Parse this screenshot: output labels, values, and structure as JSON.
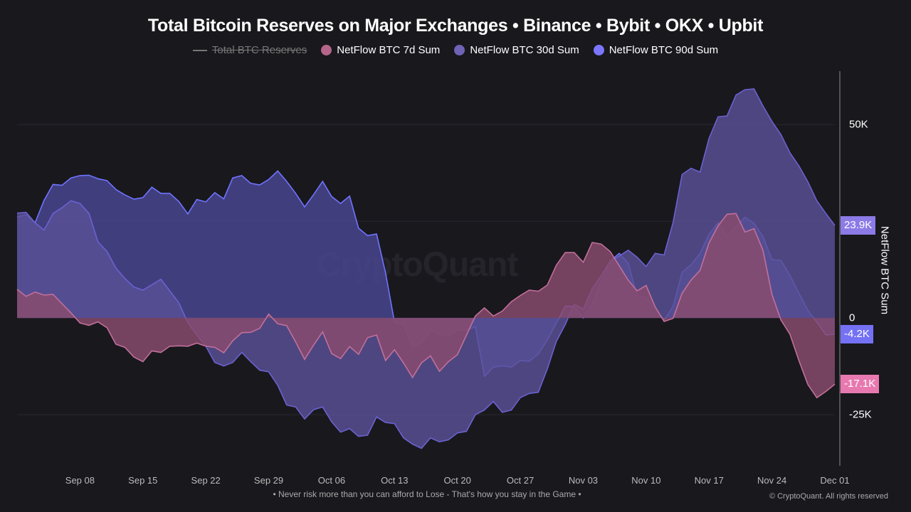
{
  "title": "Total Bitcoin Reserves on Major Exchanges • Binance • Bybit • OKX • Upbit",
  "legend": [
    {
      "label": "Total BTC Reserves",
      "color": "#777777",
      "hidden": true
    },
    {
      "label": "NetFlow BTC 7d Sum",
      "color": "#b5658a"
    },
    {
      "label": "NetFlow BTC 30d Sum",
      "color": "#6f63b5"
    },
    {
      "label": "NetFlow BTC 90d Sum",
      "color": "#7b76ff"
    }
  ],
  "watermark": "CryptoQuant",
  "footer": "• Never risk more than you can afford to Lose - That's how you stay in the Game •",
  "copyright": "© CryptoQuant. All rights reserved",
  "chart_data": {
    "type": "area",
    "title": "Total Bitcoin Reserves on Major Exchanges • Binance • Bybit • OKX • Upbit",
    "ylabel": "NetFlow BTC Sum",
    "y_unit": "K BTC",
    "ylim": [
      -38.2,
      63.8
    ],
    "y_ticks": [
      {
        "value": 50,
        "label": "50K"
      },
      {
        "value": 25,
        "label": ""
      },
      {
        "value": 0,
        "label": "0"
      },
      {
        "value": -25,
        "label": "-25K"
      }
    ],
    "grid": true,
    "legend_position": "top",
    "x_ticks": [
      "Sep 08",
      "Sep 15",
      "Sep 22",
      "Sep 29",
      "Oct 06",
      "Oct 13",
      "Oct 20",
      "Oct 27",
      "Nov 03",
      "Nov 10",
      "Nov 17",
      "Nov 24",
      "Dec 01"
    ],
    "x": [
      "Sep 01",
      "Sep 02",
      "Sep 03",
      "Sep 04",
      "Sep 05",
      "Sep 06",
      "Sep 07",
      "Sep 08",
      "Sep 09",
      "Sep 10",
      "Sep 11",
      "Sep 12",
      "Sep 13",
      "Sep 14",
      "Sep 15",
      "Sep 16",
      "Sep 17",
      "Sep 18",
      "Sep 19",
      "Sep 20",
      "Sep 21",
      "Sep 22",
      "Sep 23",
      "Sep 24",
      "Sep 25",
      "Sep 26",
      "Sep 27",
      "Sep 28",
      "Sep 29",
      "Sep 30",
      "Oct 01",
      "Oct 02",
      "Oct 03",
      "Oct 04",
      "Oct 05",
      "Oct 06",
      "Oct 07",
      "Oct 08",
      "Oct 09",
      "Oct 10",
      "Oct 11",
      "Oct 12",
      "Oct 13",
      "Oct 14",
      "Oct 15",
      "Oct 16",
      "Oct 17",
      "Oct 18",
      "Oct 19",
      "Oct 20",
      "Oct 21",
      "Oct 22",
      "Oct 23",
      "Oct 24",
      "Oct 25",
      "Oct 26",
      "Oct 27",
      "Oct 28",
      "Oct 29",
      "Oct 30",
      "Oct 31",
      "Nov 01",
      "Nov 02",
      "Nov 03",
      "Nov 04",
      "Nov 05",
      "Nov 06",
      "Nov 07",
      "Nov 08",
      "Nov 09",
      "Nov 10",
      "Nov 11",
      "Nov 12",
      "Nov 13",
      "Nov 14",
      "Nov 15",
      "Nov 16",
      "Nov 17",
      "Nov 18",
      "Nov 19",
      "Nov 20",
      "Nov 21",
      "Nov 22",
      "Nov 23",
      "Nov 24",
      "Nov 25",
      "Nov 26",
      "Nov 27",
      "Nov 28",
      "Nov 29",
      "Nov 30",
      "Dec 01"
    ],
    "series": [
      {
        "name": "NetFlow BTC 90d Sum",
        "line": "#6f74ff",
        "fill": "#4b4794",
        "badge": "#7471f5",
        "last_label": "-4.2K",
        "values": [
          26.1,
          26.7,
          24.6,
          30.4,
          34.5,
          34.3,
          36.2,
          36.8,
          36.9,
          36.0,
          35.5,
          33.2,
          31.8,
          30.7,
          31.1,
          33.8,
          32.2,
          32.2,
          30.1,
          26.9,
          30.6,
          30.0,
          32.4,
          30.8,
          36.2,
          36.8,
          34.8,
          34.4,
          35.8,
          38.0,
          35.3,
          32.2,
          28.7,
          31.9,
          35.3,
          31.4,
          29.6,
          31.5,
          23.2,
          21.3,
          21.7,
          11.7,
          -1.1,
          -1.7,
          -7.3,
          -6.4,
          -3.3,
          -4.2,
          -4.6,
          -3.1,
          -3.1,
          -2.3,
          -15.1,
          -12.7,
          -12.4,
          -12.7,
          -11.0,
          -11.2,
          -9.3,
          -5.7,
          -1.4,
          3.1,
          3.0,
          0.0,
          3.6,
          9.2,
          14.7,
          16.7,
          14.2,
          5.6,
          5.4,
          2.3,
          -0.5,
          3.0,
          11.8,
          13.8,
          16.7,
          21.6,
          24.6,
          21.1,
          23.6,
          26.0,
          24.5,
          21.0,
          15.1,
          14.9,
          11.0,
          6.4,
          2.0,
          -1.1,
          -4.4,
          -4.2
        ]
      },
      {
        "name": "NetFlow BTC 30d Sum",
        "line": "#6a62d0",
        "fill": "#5a5196",
        "badge": "#8c7ae6",
        "last_label": "23.9K",
        "values": [
          27.1,
          27.3,
          24.6,
          22.7,
          27.0,
          28.5,
          30.3,
          29.6,
          27.0,
          19.7,
          17.2,
          12.9,
          10.2,
          8.0,
          7.2,
          8.6,
          10.0,
          7.0,
          3.9,
          -1.2,
          -4.5,
          -7.3,
          -11.5,
          -12.4,
          -11.5,
          -8.9,
          -11.3,
          -13.5,
          -13.9,
          -17.4,
          -22.5,
          -23.0,
          -26.1,
          -23.7,
          -23.0,
          -26.8,
          -29.5,
          -28.6,
          -30.6,
          -30.3,
          -25.6,
          -27.0,
          -27.3,
          -31.0,
          -32.6,
          -33.7,
          -31.0,
          -32.0,
          -31.5,
          -29.7,
          -29.3,
          -25.0,
          -23.8,
          -21.6,
          -24.4,
          -23.8,
          -20.6,
          -19.5,
          -19.2,
          -13.2,
          -6.1,
          -1.7,
          3.6,
          2.3,
          7.6,
          11.0,
          14.7,
          16.0,
          17.5,
          15.7,
          13.3,
          16.7,
          16.3,
          24.7,
          37.1,
          38.7,
          37.7,
          46.4,
          52.0,
          52.2,
          57.6,
          59.0,
          59.2,
          54.8,
          50.8,
          47.4,
          42.7,
          39.3,
          35.2,
          30.3,
          27.0,
          23.9
        ]
      },
      {
        "name": "NetFlow BTC 7d Sum",
        "line": "#c0709a",
        "fill": "#8a4c6e",
        "badge": "#e879b0",
        "last_label": "-17.1K",
        "values": [
          7.4,
          5.6,
          6.7,
          5.9,
          6.1,
          3.7,
          1.3,
          -1.3,
          -1.9,
          -1.0,
          -2.5,
          -6.8,
          -7.6,
          -10.1,
          -11.3,
          -8.5,
          -8.9,
          -7.3,
          -7.2,
          -7.3,
          -6.5,
          -7.3,
          -7.6,
          -9.0,
          -5.9,
          -3.8,
          -3.7,
          -2.7,
          1.0,
          -1.5,
          -2.0,
          -6.2,
          -10.7,
          -7.0,
          -3.6,
          -9.2,
          -10.5,
          -7.4,
          -9.4,
          -5.1,
          -4.4,
          -11.0,
          -8.2,
          -11.6,
          -15.4,
          -11.6,
          -9.8,
          -13.8,
          -11.3,
          -9.5,
          -4.5,
          0.5,
          2.6,
          0.5,
          1.8,
          4.2,
          5.8,
          7.2,
          6.9,
          8.5,
          13.6,
          16.9,
          16.9,
          14.4,
          19.5,
          19.1,
          17.2,
          13.5,
          9.8,
          7.0,
          8.4,
          2.9,
          -0.9,
          -0.1,
          6.4,
          9.8,
          12.3,
          19.4,
          23.8,
          26.8,
          27.0,
          22.2,
          23.1,
          17.5,
          6.1,
          -0.5,
          -4.2,
          -11.0,
          -17.2,
          -20.6,
          -19.0,
          -17.1
        ]
      }
    ]
  }
}
